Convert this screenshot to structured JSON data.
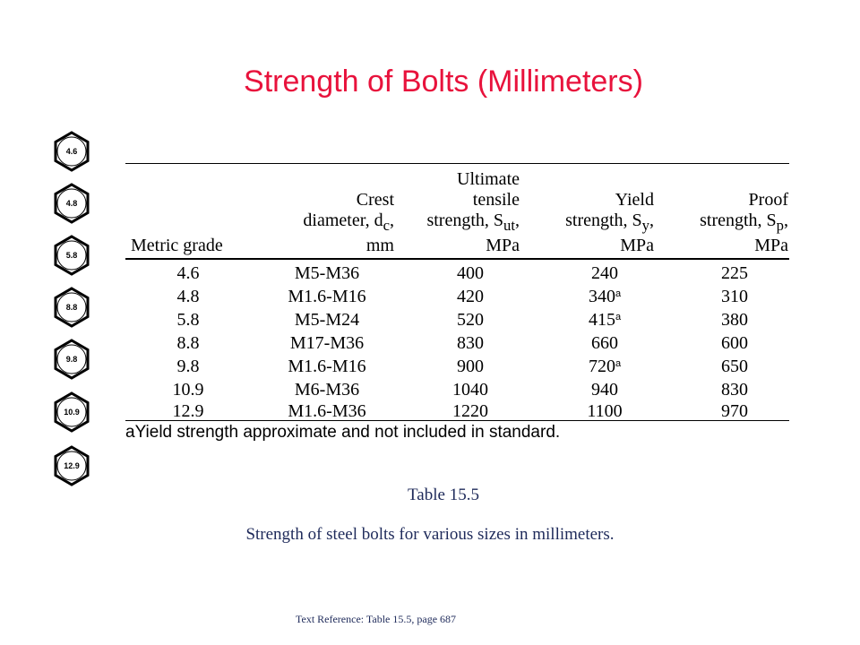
{
  "title": "Strength of Bolts (Millimeters)",
  "bolt_head_markings": [
    "4.6",
    "4.8",
    "5.8",
    "8.8",
    "9.8",
    "10.9",
    "12.9"
  ],
  "table": {
    "headers": {
      "grade": [
        "Metric grade"
      ],
      "diameter": [
        "Crest",
        "diameter, d",
        "c",
        ",",
        "mm"
      ],
      "uts": [
        "Ultimate",
        "tensile",
        "strength, S",
        "ut",
        ",",
        "MPa"
      ],
      "ys": [
        "Yield",
        "strength, S",
        "y",
        ",",
        "MPa"
      ],
      "ps": [
        "Proof",
        "strength, S",
        "p",
        ",",
        "MPa"
      ]
    },
    "rows": [
      {
        "grade": "4.6",
        "diameter": "M5-M36",
        "uts": "400",
        "ys": "240",
        "ys_note": "",
        "ps": "225"
      },
      {
        "grade": "4.8",
        "diameter": "M1.6-M16",
        "uts": "420",
        "ys": "340",
        "ys_note": "a",
        "ps": "310"
      },
      {
        "grade": "5.8",
        "diameter": "M5-M24",
        "uts": "520",
        "ys": "415",
        "ys_note": "a",
        "ps": "380"
      },
      {
        "grade": "8.8",
        "diameter": "M17-M36",
        "uts": "830",
        "ys": "660",
        "ys_note": "",
        "ps": "600"
      },
      {
        "grade": "9.8",
        "diameter": "M1.6-M16",
        "uts": "900",
        "ys": "720",
        "ys_note": "a",
        "ps": "650"
      },
      {
        "grade": "10.9",
        "diameter": "M6-M36",
        "uts": "1040",
        "ys": "940",
        "ys_note": "",
        "ps": "830"
      },
      {
        "grade": "12.9",
        "diameter": "M1.6-M36",
        "uts": "1220",
        "ys": "1100",
        "ys_note": "",
        "ps": "970"
      }
    ],
    "footnote": "aYield strength approximate and not included in standard."
  },
  "caption_number": "Table 15.5",
  "caption": "Strength of steel bolts for various sizes in millimeters.",
  "reference": "Text Reference:  Table 15.5,  page 687"
}
